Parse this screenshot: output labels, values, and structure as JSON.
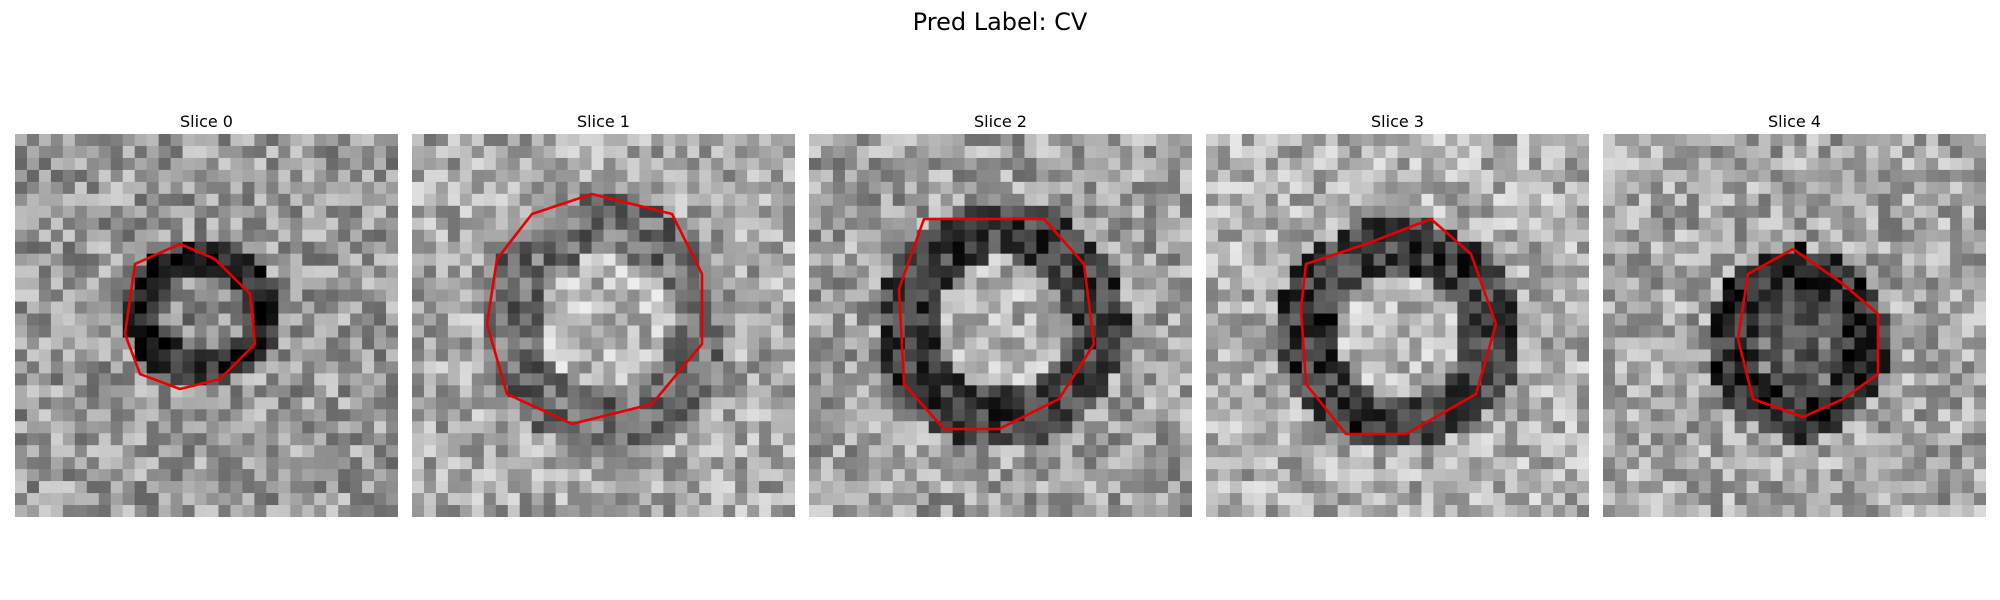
{
  "figure": {
    "title": "Pred Label: CV"
  },
  "panels": [
    {
      "title": "Slice 0",
      "background": "#9a9a9a",
      "blob_fill": "#262626",
      "blob_inner": "#8a8a8a",
      "contour_color": "#e60000"
    },
    {
      "title": "Slice 1",
      "background": "#a8a8a8",
      "blob_fill": "#707070",
      "blob_inner": "#b8b8b8",
      "contour_color": "#e60000"
    },
    {
      "title": "Slice 2",
      "background": "#a0a0a0",
      "blob_fill": "#3e3e3e",
      "blob_inner": "#b0b0b0",
      "contour_color": "#e60000"
    },
    {
      "title": "Slice 3",
      "background": "#b0b0b0",
      "blob_fill": "#3a3a3a",
      "blob_inner": "#b6b6b6",
      "contour_color": "#e60000"
    },
    {
      "title": "Slice 4",
      "background": "#a6a6a6",
      "blob_fill": "#2a2a2a",
      "blob_inner": "#6a6a6a",
      "contour_color": "#e60000"
    }
  ]
}
